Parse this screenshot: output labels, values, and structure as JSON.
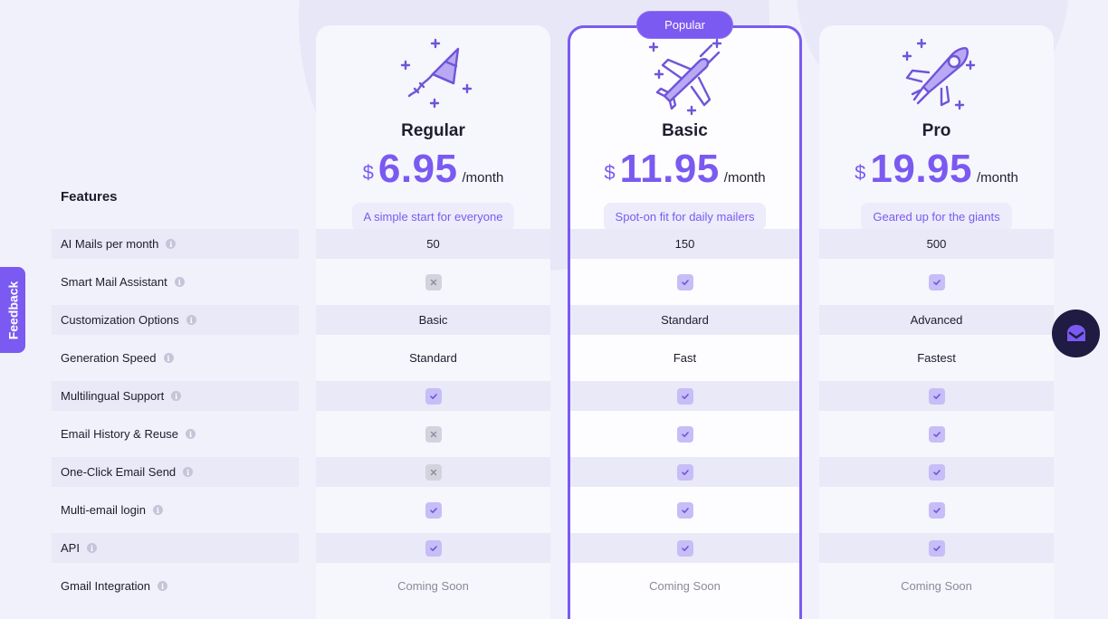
{
  "plans": [
    {
      "key": "regular",
      "name": "Regular",
      "currency": "$",
      "amount": "6.95",
      "period": "/month",
      "tagline": "A simple start for everyone",
      "icon": "kite-icon"
    },
    {
      "key": "basic",
      "name": "Basic",
      "currency": "$",
      "amount": "11.95",
      "period": "/month",
      "tagline": "Spot-on fit for daily mailers",
      "icon": "plane-icon"
    },
    {
      "key": "pro",
      "name": "Pro",
      "currency": "$",
      "amount": "19.95",
      "period": "/month",
      "tagline": "Geared up for the giants",
      "icon": "rocket-icon"
    }
  ],
  "popular_label": "Popular",
  "features_title": "Features",
  "features": [
    {
      "label": "AI Mails per month",
      "regular": "50",
      "basic": "150",
      "pro": "500"
    },
    {
      "label": "Smart Mail Assistant",
      "regular": "cross",
      "basic": "check",
      "pro": "check"
    },
    {
      "label": "Customization Options",
      "regular": "Basic",
      "basic": "Standard",
      "pro": "Advanced"
    },
    {
      "label": "Generation Speed",
      "regular": "Standard",
      "basic": "Fast",
      "pro": "Fastest"
    },
    {
      "label": "Multilingual Support",
      "regular": "check",
      "basic": "check",
      "pro": "check"
    },
    {
      "label": "Email History & Reuse",
      "regular": "cross",
      "basic": "check",
      "pro": "check"
    },
    {
      "label": "One-Click Email Send",
      "regular": "cross",
      "basic": "check",
      "pro": "check"
    },
    {
      "label": "Multi-email login",
      "regular": "check",
      "basic": "check",
      "pro": "check"
    },
    {
      "label": "API",
      "regular": "check",
      "basic": "check",
      "pro": "check"
    },
    {
      "label": "Gmail Integration",
      "regular": "Coming Soon",
      "basic": "Coming Soon",
      "pro": "Coming Soon"
    }
  ],
  "feedback_label": "Feedback",
  "colors": {
    "accent": "#7a5af0",
    "check_bg": "#c7bdf7",
    "cross_bg": "#d3d3de",
    "chat_bg": "#1f1b42"
  }
}
